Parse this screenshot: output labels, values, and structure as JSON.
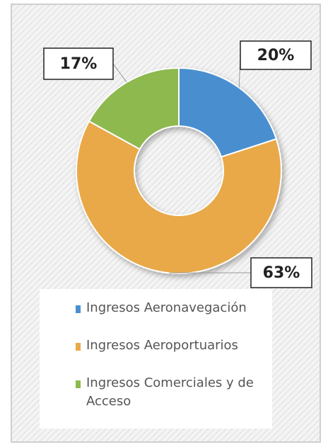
{
  "chart_data": {
    "type": "donut",
    "categories": [
      "Ingresos Aeronavegación",
      "Ingresos Aeroportuarios",
      "Ingresos Comerciales y de Acceso"
    ],
    "values": [
      20,
      63,
      17
    ],
    "value_labels": [
      "20%",
      "63%",
      "17%"
    ],
    "colors": [
      "#4a8fd0",
      "#e9a94a",
      "#8db94f"
    ]
  }
}
